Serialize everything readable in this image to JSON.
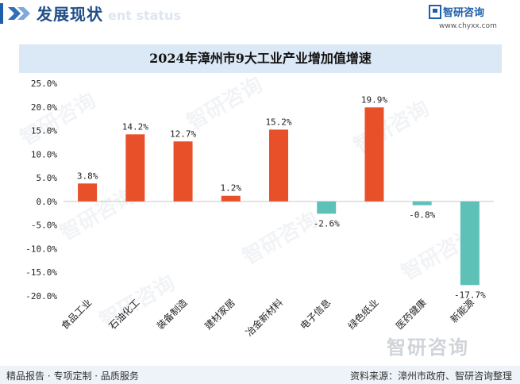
{
  "header": {
    "title": "发展现状",
    "subtitle_watermark": "ent status"
  },
  "brand": {
    "name": "智研咨询",
    "url": "www.chyxx.com"
  },
  "watermark": {
    "text": "智研咨询"
  },
  "colors": {
    "positive": "#e8502a",
    "negative": "#5ec1b8",
    "title_bar": "#dbe8f5",
    "accent": "#1f5fa8"
  },
  "chart_data": {
    "type": "bar",
    "title": "2024年漳州市9大工业产业增加值增速",
    "categories": [
      "食品工业",
      "石油化工",
      "装备制造",
      "建材家居",
      "冶金新材料",
      "电子信息",
      "绿色纸业",
      "医药健康",
      "新能源"
    ],
    "values": [
      3.8,
      14.2,
      12.7,
      1.2,
      15.2,
      -2.6,
      19.9,
      -0.8,
      -17.7
    ],
    "value_labels": [
      "3.8%",
      "14.2%",
      "12.7%",
      "1.2%",
      "15.2%",
      "-2.6%",
      "19.9%",
      "-0.8%",
      "-17.7%"
    ],
    "y_ticks": [
      "25.0%",
      "20.0%",
      "15.0%",
      "10.0%",
      "5.0%",
      "0.0%",
      "-5.0%",
      "-10.0%",
      "-15.0%",
      "-20.0%"
    ],
    "ylim": [
      -20,
      25
    ],
    "grid": false
  },
  "footer": {
    "left": "精品报告 · 专项定制 · 品质服务",
    "right": "资料来源：漳州市政府、智研咨询整理"
  }
}
